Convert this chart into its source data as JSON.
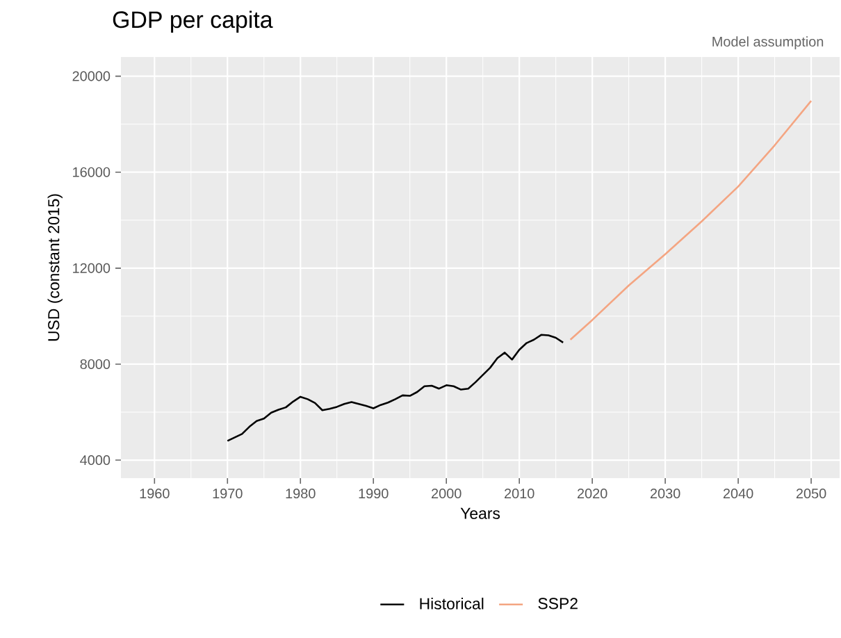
{
  "chart_data": {
    "type": "line",
    "title": "GDP per capita",
    "xlabel": "Years",
    "ylabel": "USD (constant 2015)",
    "annotations": [
      "Model assumption"
    ],
    "series": [
      {
        "name": "Historical",
        "color": "#000000",
        "x": [
          1970,
          1972,
          1973,
          1974,
          1975,
          1976,
          1977,
          1978,
          1979,
          1980,
          1981,
          1982,
          1983,
          1984,
          1985,
          1986,
          1987,
          1988,
          1989,
          1990,
          1991,
          1992,
          1993,
          1994,
          1995,
          1996,
          1997,
          1998,
          1999,
          2000,
          2001,
          2002,
          2003,
          2004,
          2005,
          2006,
          2007,
          2008,
          2009,
          2010,
          2011,
          2012,
          2013,
          2014,
          2015,
          2016
        ],
        "values": [
          4800,
          5090,
          5390,
          5630,
          5730,
          5980,
          6100,
          6200,
          6440,
          6640,
          6540,
          6380,
          6080,
          6140,
          6220,
          6340,
          6420,
          6340,
          6260,
          6160,
          6300,
          6400,
          6540,
          6700,
          6680,
          6840,
          7080,
          7100,
          6980,
          7120,
          7080,
          6940,
          6980,
          7250,
          7550,
          7850,
          8250,
          8480,
          8190,
          8600,
          8880,
          9020,
          9220,
          9200,
          9100,
          8900
        ]
      },
      {
        "name": "SSP2",
        "color": "#f4a582",
        "x": [
          2017,
          2020,
          2025,
          2030,
          2035,
          2040,
          2045,
          2050
        ],
        "values": [
          9020,
          9840,
          11280,
          12580,
          13950,
          15400,
          17120,
          18970
        ]
      }
    ],
    "xlim": [
      1955.4,
      2053.9
    ],
    "ylim": [
      3250,
      20800
    ],
    "xticks": [
      1960,
      1970,
      1980,
      1990,
      2000,
      2010,
      2020,
      2030,
      2040,
      2050
    ],
    "yticks": [
      4000,
      8000,
      12000,
      16000,
      20000
    ],
    "grid": true,
    "legend": "bottom",
    "marker": "none",
    "line_style": "solid"
  }
}
